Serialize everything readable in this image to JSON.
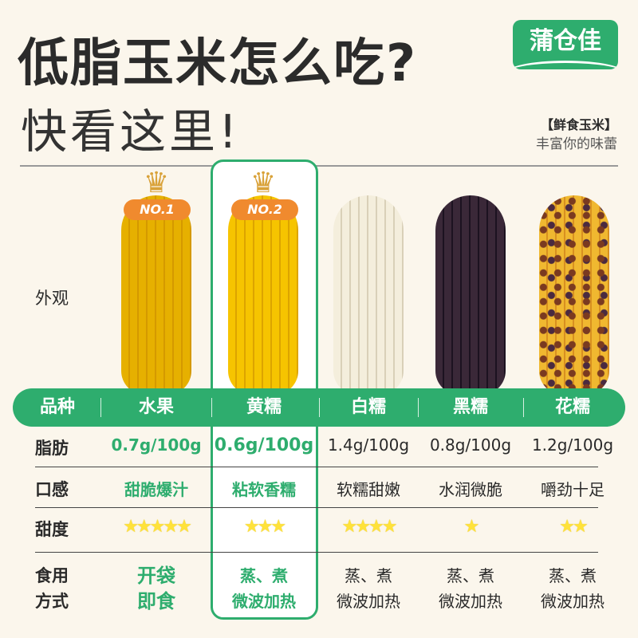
{
  "title_line1": "低脂玉米怎么吃?",
  "title_line2": "快看这里!",
  "brand": {
    "logo": "蒲仓佳",
    "tagline_title": "【鲜食玉米】",
    "tagline": "丰富你的味蕾",
    "color": "#2ead6e"
  },
  "appearance_label": "外观",
  "badges": [
    "NO.1",
    "NO.2"
  ],
  "table": {
    "header": [
      "品种",
      "水果",
      "黄糯",
      "白糯",
      "黑糯",
      "花糯"
    ],
    "rows": [
      {
        "label": "脂肪",
        "values": [
          "0.7g/100g",
          "0.6g/100g",
          "1.4g/100g",
          "0.8g/100g",
          "1.2g/100g"
        ]
      },
      {
        "label": "口感",
        "values": [
          "甜脆爆汁",
          "粘软香糯",
          "软糯甜嫩",
          "水润微脆",
          "嚼劲十足"
        ]
      },
      {
        "label": "甜度",
        "stars": [
          5,
          3,
          4,
          1,
          2
        ],
        "values": [
          "★★★★★",
          "★★★",
          "★★★★",
          "★",
          "★★"
        ]
      },
      {
        "label": "食用方式",
        "label_lines": [
          "食用",
          "方式"
        ],
        "values": [
          [
            "开袋",
            "即食"
          ],
          [
            "蒸、煮",
            "微波加热"
          ],
          [
            "蒸、煮",
            "微波加热"
          ],
          [
            "蒸、煮",
            "微波加热"
          ],
          [
            "蒸、煮",
            "微波加热"
          ]
        ]
      }
    ]
  }
}
